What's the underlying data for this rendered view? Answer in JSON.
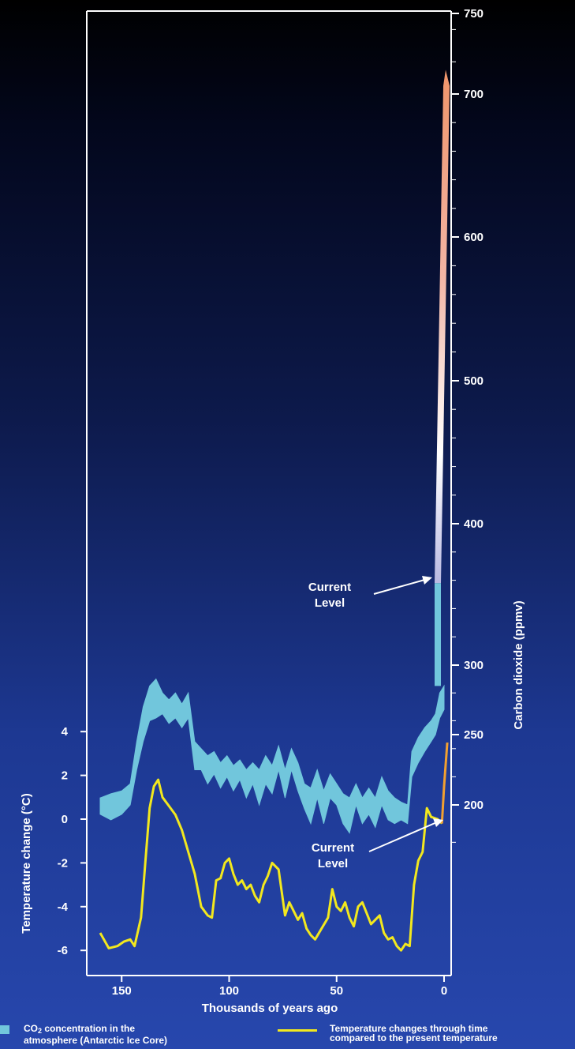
{
  "chart_data": {
    "type": "line",
    "title": "",
    "xlabel": "Thousands of years ago",
    "x_ticks": [
      150,
      100,
      50,
      0
    ],
    "xlim": [
      160,
      0
    ],
    "y_left": {
      "label": "Temperature change (°C)",
      "ticks": [
        4,
        2,
        0,
        -2,
        -4,
        -6
      ],
      "range": [
        -6.5,
        4.5
      ]
    },
    "y_right": {
      "label": "Carbon dioxide (ppmv)",
      "ticks": [
        750,
        700,
        600,
        500,
        400,
        300,
        250,
        200
      ],
      "range": [
        170,
        750
      ]
    },
    "annotations": [
      {
        "text_line1": "Current",
        "text_line2": "Level",
        "target": "co2",
        "x": 0,
        "y": 358
      },
      {
        "text_line1": "Current",
        "text_line2": "Level",
        "target": "temperature",
        "x": 0,
        "y": 0
      }
    ],
    "series": [
      {
        "name": "CO2 concentration in the atmosphere (Antarctic Ice Core)",
        "color": "#71c6dc",
        "axis": "right",
        "x": [
          160,
          155,
          150,
          146,
          143,
          140,
          137,
          134,
          131,
          128,
          125,
          122,
          119,
          116,
          113,
          110,
          107,
          104,
          101,
          98,
          95,
          92,
          89,
          86,
          83,
          80,
          77,
          74,
          71,
          68,
          65,
          62,
          59,
          56,
          53,
          50,
          47,
          44,
          41,
          38,
          35,
          32,
          29,
          26,
          23,
          20,
          17,
          15,
          12,
          9,
          6,
          4,
          2,
          0
        ],
        "low": [
          195,
          192,
          195,
          200,
          225,
          245,
          260,
          262,
          265,
          258,
          262,
          255,
          262,
          225,
          225,
          215,
          222,
          212,
          220,
          210,
          218,
          205,
          215,
          200,
          215,
          208,
          225,
          205,
          225,
          210,
          198,
          190,
          205,
          190,
          205,
          200,
          190,
          185,
          200,
          190,
          195,
          188,
          200,
          192,
          190,
          192,
          190,
          220,
          230,
          238,
          245,
          250,
          262,
          268
        ],
        "high": [
          205,
          208,
          210,
          215,
          245,
          270,
          285,
          290,
          280,
          275,
          280,
          272,
          280,
          245,
          240,
          235,
          238,
          230,
          235,
          228,
          232,
          225,
          230,
          225,
          235,
          228,
          242,
          225,
          240,
          230,
          215,
          212,
          225,
          210,
          222,
          215,
          208,
          205,
          215,
          205,
          212,
          205,
          220,
          210,
          205,
          202,
          200,
          238,
          248,
          255,
          260,
          265,
          280,
          285
        ]
      },
      {
        "name": "Temperature changes through time compared to the present temperature",
        "color": "#f2e81e",
        "axis": "left",
        "x": [
          160,
          156,
          152,
          149,
          146,
          144,
          141,
          139,
          137,
          135,
          133,
          131,
          128,
          125,
          122,
          119,
          116,
          113,
          110,
          108,
          106,
          104,
          102,
          100,
          98,
          96,
          94,
          92,
          90,
          88,
          86,
          84,
          82,
          80,
          77,
          74,
          72,
          70,
          68,
          66,
          64,
          62,
          60,
          57,
          54,
          52,
          50,
          48,
          46,
          44,
          42,
          40,
          38,
          36,
          34,
          32,
          30,
          28,
          26,
          24,
          22,
          20,
          18,
          16,
          14,
          12,
          10,
          8,
          6,
          3,
          1
        ],
        "values": [
          -5.2,
          -5.9,
          -5.8,
          -5.6,
          -5.5,
          -5.8,
          -4.5,
          -2.0,
          0.5,
          1.5,
          1.8,
          1.0,
          0.6,
          0.2,
          -0.5,
          -1.5,
          -2.5,
          -4.0,
          -4.4,
          -4.5,
          -2.8,
          -2.7,
          -2.0,
          -1.8,
          -2.5,
          -3.0,
          -2.8,
          -3.2,
          -3.0,
          -3.5,
          -3.8,
          -3.0,
          -2.6,
          -2.0,
          -2.3,
          -4.4,
          -3.8,
          -4.2,
          -4.6,
          -4.3,
          -5.0,
          -5.3,
          -5.5,
          -5.0,
          -4.5,
          -3.2,
          -4.0,
          -4.2,
          -3.8,
          -4.5,
          -4.9,
          -4.0,
          -3.8,
          -4.3,
          -4.8,
          -4.6,
          -4.4,
          -5.2,
          -5.5,
          -5.4,
          -5.8,
          -6.0,
          -5.7,
          -5.8,
          -3.0,
          -1.9,
          -1.5,
          0.5,
          0.1,
          0.0,
          -0.2
        ]
      }
    ]
  },
  "legend": {
    "co2_line1": "CO",
    "co2_sub": "2",
    "co2_line1_rest": " concentration in the",
    "co2_line2": "atmosphere (Antarctic Ice Core)",
    "temp_line1": "Temperature changes through time",
    "temp_line2": "compared to the present temperature"
  }
}
